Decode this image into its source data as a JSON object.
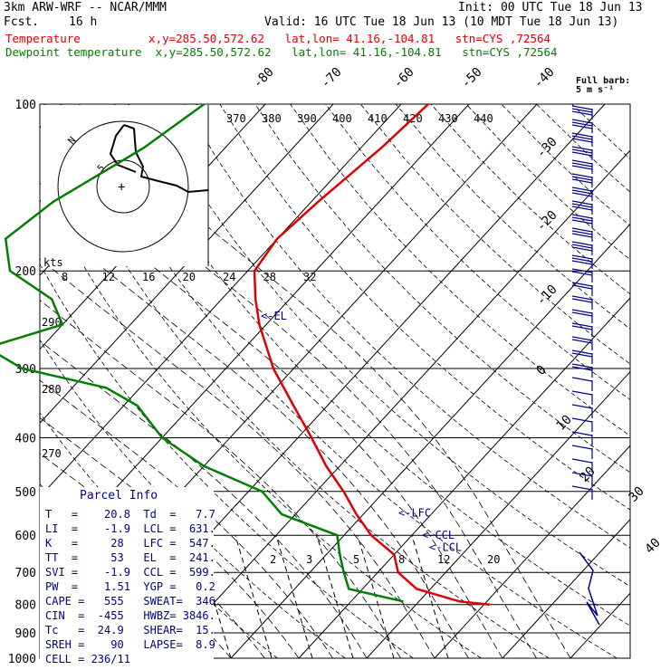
{
  "header": {
    "model": "3km ARW-WRF -- NCAR/MMM",
    "init": "Init: 00 UTC Tue 18 Jun 13",
    "fcst_label": "Fcst.",
    "fcst_value": "16 h",
    "valid": "Valid: 16 UTC Tue 18 Jun 13 (10 MDT Tue 18 Jun 13)",
    "temp_line": "Temperature          x,y=285.50,572.62   lat,lon= 41.16,-104.81   stn=CYS ,72564",
    "dew_line": "Dewpoint temperature  x,y=285.50,572.62   lat,lon= 41.16,-104.81   stn=CYS ,72564"
  },
  "colors": {
    "temperature": "#e00000",
    "dewpoint": "#008000",
    "annotations": "#00008b",
    "barbs": "#00008b"
  },
  "chart_data": {
    "type": "line",
    "pressure_levels": [
      "100",
      "200",
      "300",
      "400",
      "500",
      "600",
      "700",
      "800",
      "900",
      "1000"
    ],
    "temp_tick_labels": [
      "-80",
      "-70",
      "-60",
      "-50",
      "-40",
      "-30",
      "-20",
      "-10",
      "0",
      "10",
      "20",
      "30",
      "40"
    ],
    "theta_labels": [
      "370",
      "380",
      "390",
      "400",
      "410",
      "420",
      "430",
      "440"
    ],
    "theta_left_labels": [
      "290",
      "280",
      "270"
    ],
    "mixing_ratio_labels": [
      "2",
      "3",
      "5",
      "8",
      "12",
      "20"
    ],
    "hodograph_ticks": [
      "8",
      "12",
      "16",
      "20",
      "24",
      "28",
      "32"
    ],
    "hodograph_unit": "kts",
    "barb_legend": "Full barb:\n5 m s⁻¹",
    "temperature": [
      {
        "p": 100,
        "t": -56
      },
      {
        "p": 120,
        "t": -57
      },
      {
        "p": 150,
        "t": -59
      },
      {
        "p": 175,
        "t": -60
      },
      {
        "p": 200,
        "t": -59
      },
      {
        "p": 225,
        "t": -55
      },
      {
        "p": 250,
        "t": -51
      },
      {
        "p": 300,
        "t": -43
      },
      {
        "p": 350,
        "t": -35
      },
      {
        "p": 400,
        "t": -28
      },
      {
        "p": 450,
        "t": -22
      },
      {
        "p": 500,
        "t": -16
      },
      {
        "p": 550,
        "t": -11
      },
      {
        "p": 600,
        "t": -6
      },
      {
        "p": 650,
        "t": 0
      },
      {
        "p": 700,
        "t": 3
      },
      {
        "p": 750,
        "t": 8
      },
      {
        "p": 790,
        "t": 16
      },
      {
        "p": 800,
        "t": 20.8
      }
    ],
    "dewpoint": [
      {
        "p": 100,
        "t": -89
      },
      {
        "p": 120,
        "t": -92
      },
      {
        "p": 150,
        "t": -98
      },
      {
        "p": 175,
        "t": -100
      },
      {
        "p": 200,
        "t": -95
      },
      {
        "p": 225,
        "t": -85
      },
      {
        "p": 250,
        "t": -80
      },
      {
        "p": 275,
        "t": -88
      },
      {
        "p": 300,
        "t": -80
      },
      {
        "p": 325,
        "t": -65
      },
      {
        "p": 350,
        "t": -58
      },
      {
        "p": 400,
        "t": -50
      },
      {
        "p": 450,
        "t": -40
      },
      {
        "p": 500,
        "t": -28
      },
      {
        "p": 550,
        "t": -22
      },
      {
        "p": 600,
        "t": -11
      },
      {
        "p": 650,
        "t": -8
      },
      {
        "p": 700,
        "t": -5
      },
      {
        "p": 750,
        "t": -2
      },
      {
        "p": 790,
        "t": 7.7
      }
    ],
    "annotations": [
      {
        "label": "<-EL",
        "p": 241
      },
      {
        "label": "<-LFC",
        "p": 547
      },
      {
        "label": "<-CCL",
        "p": 599
      },
      {
        "label": "<-LCL",
        "p": 631
      }
    ]
  },
  "parcel_info": {
    "title": "Parcel Info",
    "rows": [
      "T   =    20.8  Td  =   7.7",
      "LI  =    -1.9  LCL =  631.",
      "K   =     28   LFC =  547.",
      "TT  =     53   EL  =  241.",
      "SVI =    -1.9  CCL =  599.",
      "PW  =    1.51  YGP =   0.2",
      "CAPE =   555   SWEAT=  346",
      "CIN  =  -455   HWBZ= 3846.",
      "Tc   =  24.9   SHEAR=  15.",
      "SREH =    90   LAPSE=  8.9",
      "CELL = 236/11"
    ]
  }
}
